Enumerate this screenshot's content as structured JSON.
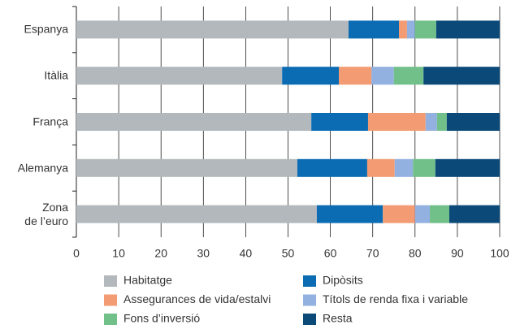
{
  "chart_data": {
    "type": "stacked-bar-horizontal",
    "categories": [
      "Espanya",
      "Itàlia",
      "França",
      "Alemanya",
      "Zona\nde l’euro"
    ],
    "series": [
      {
        "name": "Habitatge",
        "color": "#b2b8bc",
        "values": [
          64.3,
          48.6,
          55.5,
          52.2,
          56.8
        ]
      },
      {
        "name": "Dipòsits",
        "color": "#0b6cb4",
        "values": [
          11.9,
          13.4,
          13.4,
          16.5,
          15.6
        ]
      },
      {
        "name": "Assegurances de vida/estalvi",
        "color": "#f39b72",
        "values": [
          1.9,
          7.7,
          13.6,
          6.5,
          7.6
        ]
      },
      {
        "name": "Títols de renda fixa i variable",
        "color": "#92b0e0",
        "values": [
          1.9,
          5.3,
          2.7,
          4.3,
          3.5
        ]
      },
      {
        "name": "Fons d’inversió",
        "color": "#71bf89",
        "values": [
          5.0,
          7.0,
          2.3,
          5.3,
          4.6
        ]
      },
      {
        "name": "Resta",
        "color": "#0b4a78",
        "values": [
          15.0,
          18.0,
          12.5,
          15.2,
          11.9
        ]
      }
    ],
    "xlim": [
      0,
      100
    ],
    "xticks": [
      0,
      10,
      20,
      30,
      40,
      50,
      60,
      70,
      80,
      90,
      100
    ],
    "grid": true
  }
}
